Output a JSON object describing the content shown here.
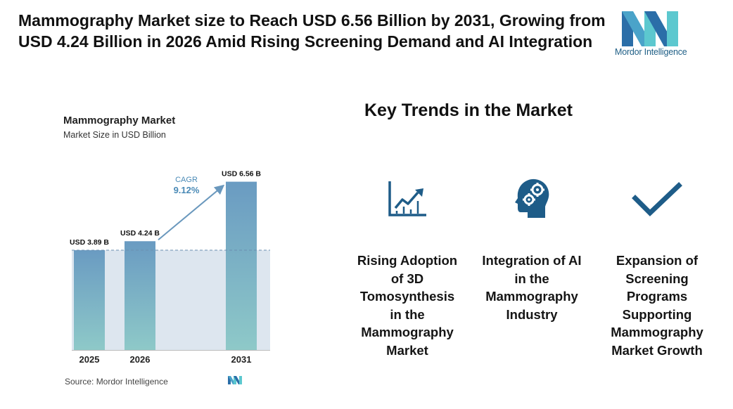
{
  "headline": "Mammography Market size to Reach USD 6.56 Billion by 2031, Growing from USD 4.24 Billion in 2026 Amid Rising Screening Demand and AI Integration",
  "brand": {
    "name": "Mordor Intelligence",
    "colors": {
      "dark": "#2b6ea8",
      "light": "#5cc8cf"
    }
  },
  "chart_data": {
    "type": "bar",
    "title": "Mammography Market",
    "subtitle": "Market Size in USD Billion",
    "categories": [
      "2025",
      "2026",
      "2031"
    ],
    "values": [
      3.89,
      4.24,
      6.56
    ],
    "data_labels": [
      "USD 3.89 B",
      "USD 4.24 B",
      "USD 6.56 B"
    ],
    "cagr": {
      "label": "CAGR",
      "value": "9.12%"
    },
    "ylim": [
      0,
      7
    ],
    "reference_line_value": 3.89,
    "colors": {
      "bar_top": "#6a9bc2",
      "bar_bottom": "#8ec9c8",
      "shade": "#dde6ef",
      "arrow": "#6a98bd",
      "cagr_text": "#4a8ab6"
    }
  },
  "source": "Source:  Mordor Intelligence",
  "trends": {
    "title": "Key Trends in the Market",
    "icon_color": "#1e5c88",
    "items": [
      {
        "icon": "growth-chart-icon",
        "lines": [
          "Rising Adoption",
          "of 3D",
          "Tomosynthesis",
          "in the",
          "Mammography",
          "Market"
        ]
      },
      {
        "icon": "head-gears-icon",
        "lines": [
          "Integration of AI",
          "in the",
          "Mammography",
          "Industry"
        ]
      },
      {
        "icon": "checkmark-icon",
        "lines": [
          "Expansion of",
          "Screening",
          "Programs",
          "Supporting",
          "Mammography",
          "Market Growth"
        ]
      }
    ]
  }
}
